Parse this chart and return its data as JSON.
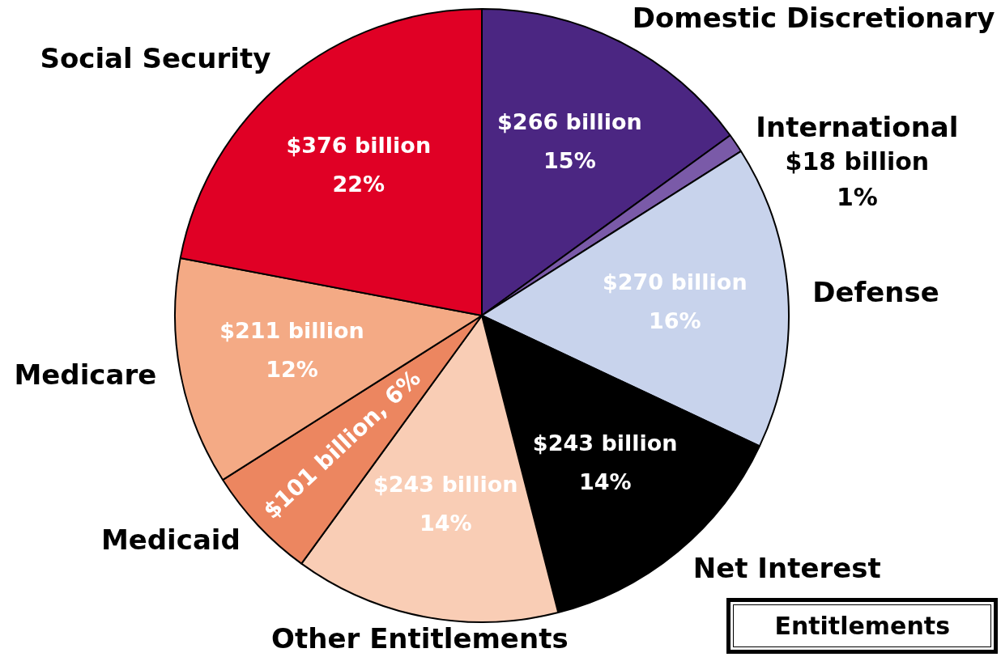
{
  "chart_data": {
    "type": "pie",
    "categories": [
      "Domestic Discretionary",
      "International",
      "Defense",
      "Net Interest",
      "Other Entitlements",
      "Medicaid",
      "Medicare",
      "Social Security"
    ],
    "values": [
      15,
      1,
      16,
      14,
      14,
      6,
      12,
      22
    ],
    "colors": [
      "#4b2682",
      "#7a5aa8",
      "#c8d3ec",
      "#000000",
      "#f9cdb5",
      "#ec8660",
      "#f4aa85",
      "#e00025"
    ],
    "value_labels": [
      "$266 billion\n15%",
      "$18 billion\n1%",
      "$270 billion\n16%",
      "$243 billion\n14%",
      "$243 billion\n14%",
      "$101 billion, 6%",
      "$211 billion\n12%",
      "$376 billion\n22%"
    ],
    "legend": false,
    "annotations": [
      "Entitlements"
    ]
  }
}
